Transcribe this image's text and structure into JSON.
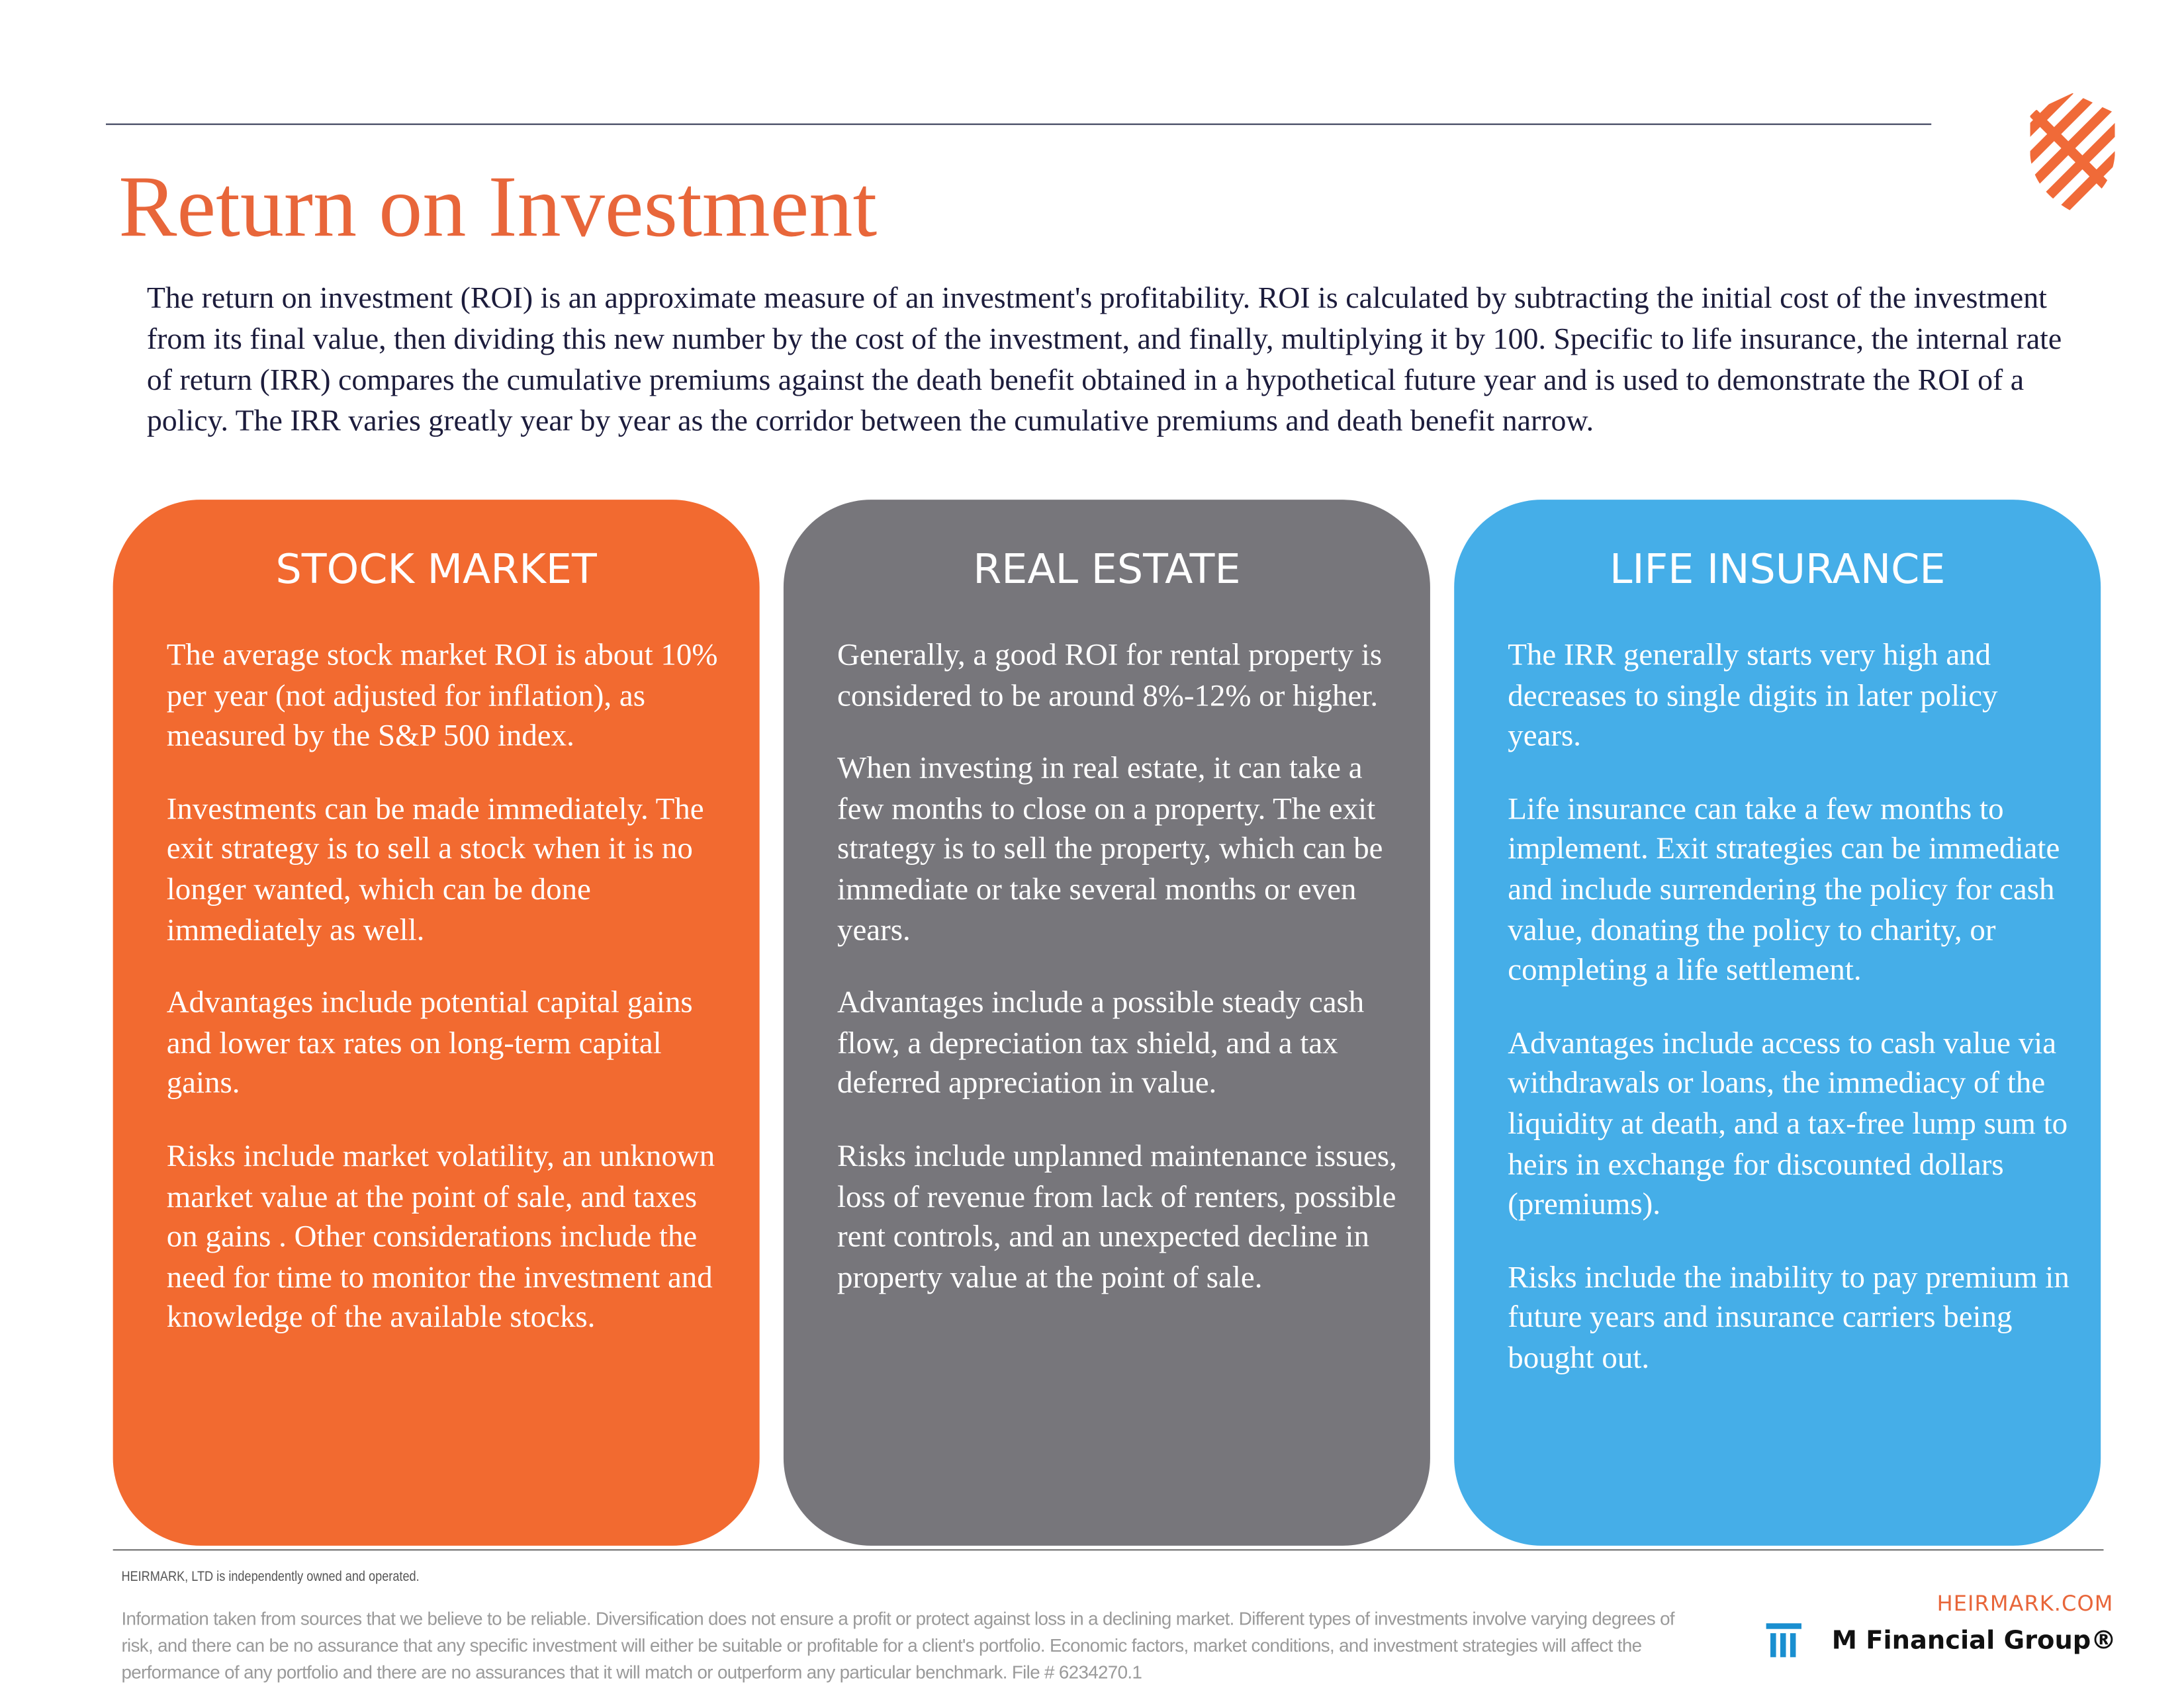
{
  "header": {
    "title": "Return on Investment",
    "intro": "The return on investment (ROI) is an approximate measure of an investment's profitability. ROI is calculated by subtracting the initial cost of the investment from its final value, then dividing this new number by the cost of the investment, and finally, multiplying it by 100.  Specific to life insurance, the internal rate of return (IRR) compares the cumulative premiums against the death benefit obtained in a hypothetical future year and is used to demonstrate the ROI of a policy. The IRR varies greatly year by year as the corridor between the cumulative premiums and death benefit narrow."
  },
  "columns": [
    {
      "title": "STOCK MARKET",
      "color": "#f26a30",
      "paragraphs": [
        "The average stock market ROI is about 10% per year (not adjusted for inflation), as measured by the S&P 500 index.",
        "Investments can be made immediately.  The exit strategy is to sell a stock when it is no longer wanted, which can be done immediately as well.",
        "Advantages include potential capital gains and lower tax rates on long-term capital gains.",
        "Risks include market volatility, an unknown market value at the point of sale, and taxes on gains .  Other considerations include the need for time to monitor the investment and knowledge of the available stocks."
      ]
    },
    {
      "title": "REAL ESTATE",
      "color": "#77767b",
      "paragraphs": [
        "Generally, a good ROI for rental property is considered to be around 8%-12% or higher.",
        "When investing in real estate, it can take a few months to close on a property.  The exit strategy is to sell the property, which can be immediate or take several months or even years.",
        "Advantages include a possible steady cash flow, a depreciation tax shield, and a tax deferred appreciation in value.",
        "Risks include unplanned maintenance issues, loss of revenue from lack of renters, possible rent controls, and an unexpected decline in property value at the point of sale."
      ]
    },
    {
      "title": "LIFE INSURANCE",
      "color": "#45aee8",
      "paragraphs": [
        "The IRR generally starts very high and decreases to single digits in later policy years.",
        "Life insurance can take a few months to implement.  Exit strategies can be immediate and include surrendering the policy for cash value, donating the policy to charity, or completing a life settlement.",
        "Advantages include access to cash value via withdrawals or loans, the immediacy of the liquidity at death, and a tax-free lump sum to heirs in exchange for discounted dollars (premiums).",
        "Risks include the inability to pay premium in future years and insurance carriers being bought out."
      ]
    }
  ],
  "footer": {
    "ownership": "HEIRMARK, LTD is independently owned and operated.",
    "disclaimer": "Information taken from sources that we believe to be reliable. Diversification does not ensure a profit or protect against loss in a declining market. Different types of investments involve varying degrees of risk, and there can be no assurance that any specific investment will either be suitable or profitable for a client's portfolio. Economic factors, market conditions, and investment strategies will affect the performance of any portfolio and there are no assurances that it will match or outperform any particular benchmark. File # 6234270.1",
    "website": "HEIRMARK.COM",
    "partner": "M Financial Group®"
  }
}
